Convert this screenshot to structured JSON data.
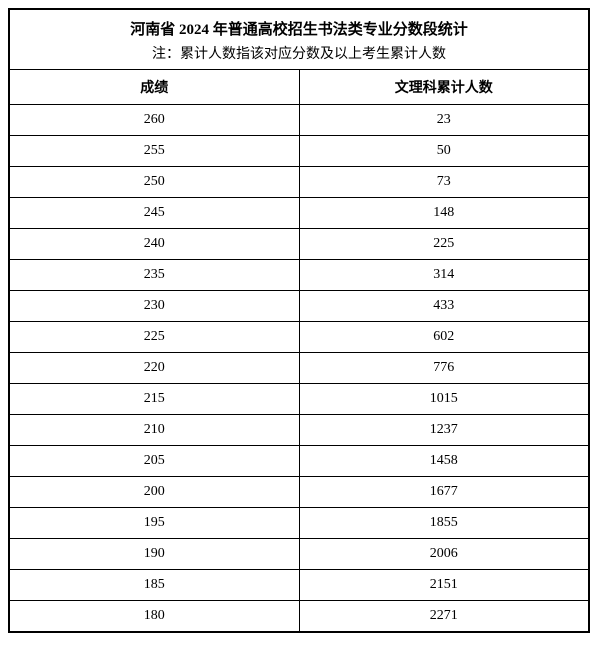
{
  "header": {
    "title": "河南省 2024 年普通高校招生书法类专业分数段统计",
    "subtitle": "注：累计人数指该对应分数及以上考生累计人数"
  },
  "table": {
    "columns": [
      "成绩",
      "文理科累计人数"
    ],
    "rows": [
      [
        "260",
        "23"
      ],
      [
        "255",
        "50"
      ],
      [
        "250",
        "73"
      ],
      [
        "245",
        "148"
      ],
      [
        "240",
        "225"
      ],
      [
        "235",
        "314"
      ],
      [
        "230",
        "433"
      ],
      [
        "225",
        "602"
      ],
      [
        "220",
        "776"
      ],
      [
        "215",
        "1015"
      ],
      [
        "210",
        "1237"
      ],
      [
        "205",
        "1458"
      ],
      [
        "200",
        "1677"
      ],
      [
        "195",
        "1855"
      ],
      [
        "190",
        "2006"
      ],
      [
        "185",
        "2151"
      ],
      [
        "180",
        "2271"
      ]
    ],
    "col_widths": [
      "50%",
      "50%"
    ],
    "border_color": "#000000",
    "background_color": "#ffffff",
    "title_fontsize": 15,
    "subtitle_fontsize": 14,
    "cell_fontsize": 14
  }
}
